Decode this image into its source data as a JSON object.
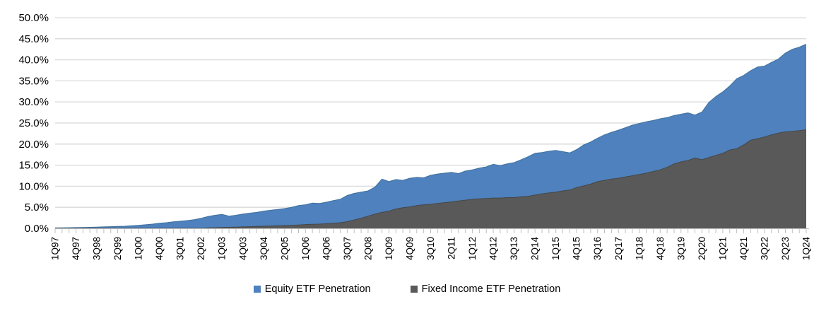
{
  "chart_data": {
    "type": "area",
    "overlapping": true,
    "grid": "horizontal",
    "legend_position": "bottom",
    "ylim": [
      0,
      50
    ],
    "y_tick_step": 5,
    "y_tick_labels": [
      "0.0%",
      "5.0%",
      "10.0%",
      "15.0%",
      "20.0%",
      "25.0%",
      "30.0%",
      "35.0%",
      "40.0%",
      "45.0%",
      "50.0%"
    ],
    "x_label_every": 3,
    "visible_x_labels": [
      "1Q97",
      "4Q97",
      "3Q98",
      "2Q99",
      "1Q00",
      "4Q00",
      "3Q01",
      "2Q02",
      "1Q03",
      "4Q03",
      "3Q04",
      "2Q05",
      "1Q06",
      "4Q06",
      "3Q07",
      "2Q08",
      "1Q09",
      "4Q09",
      "3Q10",
      "2Q11",
      "1Q12",
      "4Q12",
      "3Q13",
      "2Q14",
      "1Q15",
      "4Q15",
      "3Q16",
      "2Q17",
      "1Q18",
      "4Q18",
      "3Q19",
      "2Q20",
      "1Q21",
      "4Q21",
      "3Q22",
      "2Q23",
      "1Q24"
    ],
    "x": [
      "1Q97",
      "2Q97",
      "3Q97",
      "4Q97",
      "1Q98",
      "2Q98",
      "3Q98",
      "4Q98",
      "1Q99",
      "2Q99",
      "3Q99",
      "4Q99",
      "1Q00",
      "2Q00",
      "3Q00",
      "4Q00",
      "1Q01",
      "2Q01",
      "3Q01",
      "4Q01",
      "1Q02",
      "2Q02",
      "3Q02",
      "4Q02",
      "1Q03",
      "2Q03",
      "3Q03",
      "4Q03",
      "1Q04",
      "2Q04",
      "3Q04",
      "4Q04",
      "1Q05",
      "2Q05",
      "3Q05",
      "4Q05",
      "1Q06",
      "2Q06",
      "3Q06",
      "4Q06",
      "1Q07",
      "2Q07",
      "3Q07",
      "4Q07",
      "1Q08",
      "2Q08",
      "3Q08",
      "4Q08",
      "1Q09",
      "2Q09",
      "3Q09",
      "4Q09",
      "1Q10",
      "2Q10",
      "3Q10",
      "4Q10",
      "1Q11",
      "2Q11",
      "3Q11",
      "4Q11",
      "1Q12",
      "2Q12",
      "3Q12",
      "4Q12",
      "1Q13",
      "2Q13",
      "3Q13",
      "4Q13",
      "1Q14",
      "2Q14",
      "3Q14",
      "4Q14",
      "1Q15",
      "2Q15",
      "3Q15",
      "4Q15",
      "1Q16",
      "2Q16",
      "3Q16",
      "4Q16",
      "1Q17",
      "2Q17",
      "3Q17",
      "4Q17",
      "1Q18",
      "2Q18",
      "3Q18",
      "4Q18",
      "1Q19",
      "2Q19",
      "3Q19",
      "4Q19",
      "1Q20",
      "2Q20",
      "3Q20",
      "4Q20",
      "1Q21",
      "2Q21",
      "3Q21",
      "4Q21",
      "1Q22",
      "2Q22",
      "3Q22",
      "4Q22",
      "1Q23",
      "2Q23",
      "3Q23",
      "4Q23",
      "1Q24"
    ],
    "series": [
      {
        "name": "Equity ETF Penetration",
        "color": "#4E81BD",
        "edge_color": "#41719C",
        "values": [
          0.1,
          0.12,
          0.15,
          0.18,
          0.22,
          0.26,
          0.3,
          0.35,
          0.4,
          0.45,
          0.5,
          0.6,
          0.7,
          0.85,
          1.0,
          1.2,
          1.35,
          1.55,
          1.7,
          1.85,
          2.05,
          2.4,
          2.8,
          3.1,
          3.3,
          2.9,
          3.1,
          3.4,
          3.6,
          3.8,
          4.1,
          4.3,
          4.5,
          4.7,
          5.0,
          5.4,
          5.6,
          6.0,
          5.9,
          6.2,
          6.6,
          6.9,
          7.8,
          8.3,
          8.6,
          8.9,
          9.8,
          11.7,
          11.1,
          11.6,
          11.4,
          11.9,
          12.1,
          12.0,
          12.6,
          12.9,
          13.1,
          13.3,
          13.0,
          13.6,
          13.9,
          14.3,
          14.6,
          15.2,
          14.9,
          15.3,
          15.6,
          16.3,
          17.0,
          17.8,
          18.0,
          18.3,
          18.5,
          18.2,
          17.9,
          18.7,
          19.8,
          20.5,
          21.4,
          22.2,
          22.8,
          23.3,
          23.9,
          24.5,
          24.9,
          25.3,
          25.6,
          26.0,
          26.3,
          26.8,
          27.1,
          27.4,
          26.9,
          27.6,
          29.9,
          31.3,
          32.4,
          33.8,
          35.5,
          36.3,
          37.4,
          38.3,
          38.5,
          39.4,
          40.2,
          41.6,
          42.5,
          43.0,
          43.7
        ]
      },
      {
        "name": "Fixed Income ETF Penetration",
        "color": "#595959",
        "edge_color": "#474747",
        "values": [
          0,
          0,
          0,
          0,
          0,
          0,
          0,
          0,
          0,
          0,
          0,
          0,
          0,
          0,
          0,
          0,
          0,
          0,
          0,
          0,
          0.0,
          0.0,
          0.1,
          0.15,
          0.2,
          0.25,
          0.3,
          0.35,
          0.4,
          0.45,
          0.5,
          0.55,
          0.6,
          0.65,
          0.7,
          0.8,
          0.9,
          0.95,
          1.0,
          1.1,
          1.2,
          1.35,
          1.6,
          2.0,
          2.4,
          2.9,
          3.4,
          3.8,
          4.1,
          4.6,
          4.9,
          5.1,
          5.4,
          5.6,
          5.7,
          5.9,
          6.1,
          6.3,
          6.5,
          6.7,
          6.9,
          7.0,
          7.1,
          7.2,
          7.2,
          7.3,
          7.3,
          7.5,
          7.6,
          7.9,
          8.2,
          8.4,
          8.6,
          8.9,
          9.1,
          9.7,
          10.1,
          10.5,
          11.1,
          11.4,
          11.7,
          11.9,
          12.2,
          12.5,
          12.8,
          13.1,
          13.5,
          13.9,
          14.5,
          15.3,
          15.8,
          16.1,
          16.7,
          16.3,
          16.8,
          17.3,
          17.8,
          18.6,
          18.9,
          19.8,
          20.9,
          21.3,
          21.7,
          22.2,
          22.6,
          22.9,
          23.0,
          23.2,
          23.4
        ]
      }
    ],
    "colors": {
      "gridline": "#D9D9D9",
      "axis": "#BFBFBF",
      "tick": "#BFBFBF",
      "label_text": "#000000"
    }
  },
  "legend": {
    "items": [
      {
        "label": "Equity ETF Penetration",
        "color": "#4E81BD"
      },
      {
        "label": "Fixed Income ETF Penetration",
        "color": "#595959"
      }
    ]
  }
}
